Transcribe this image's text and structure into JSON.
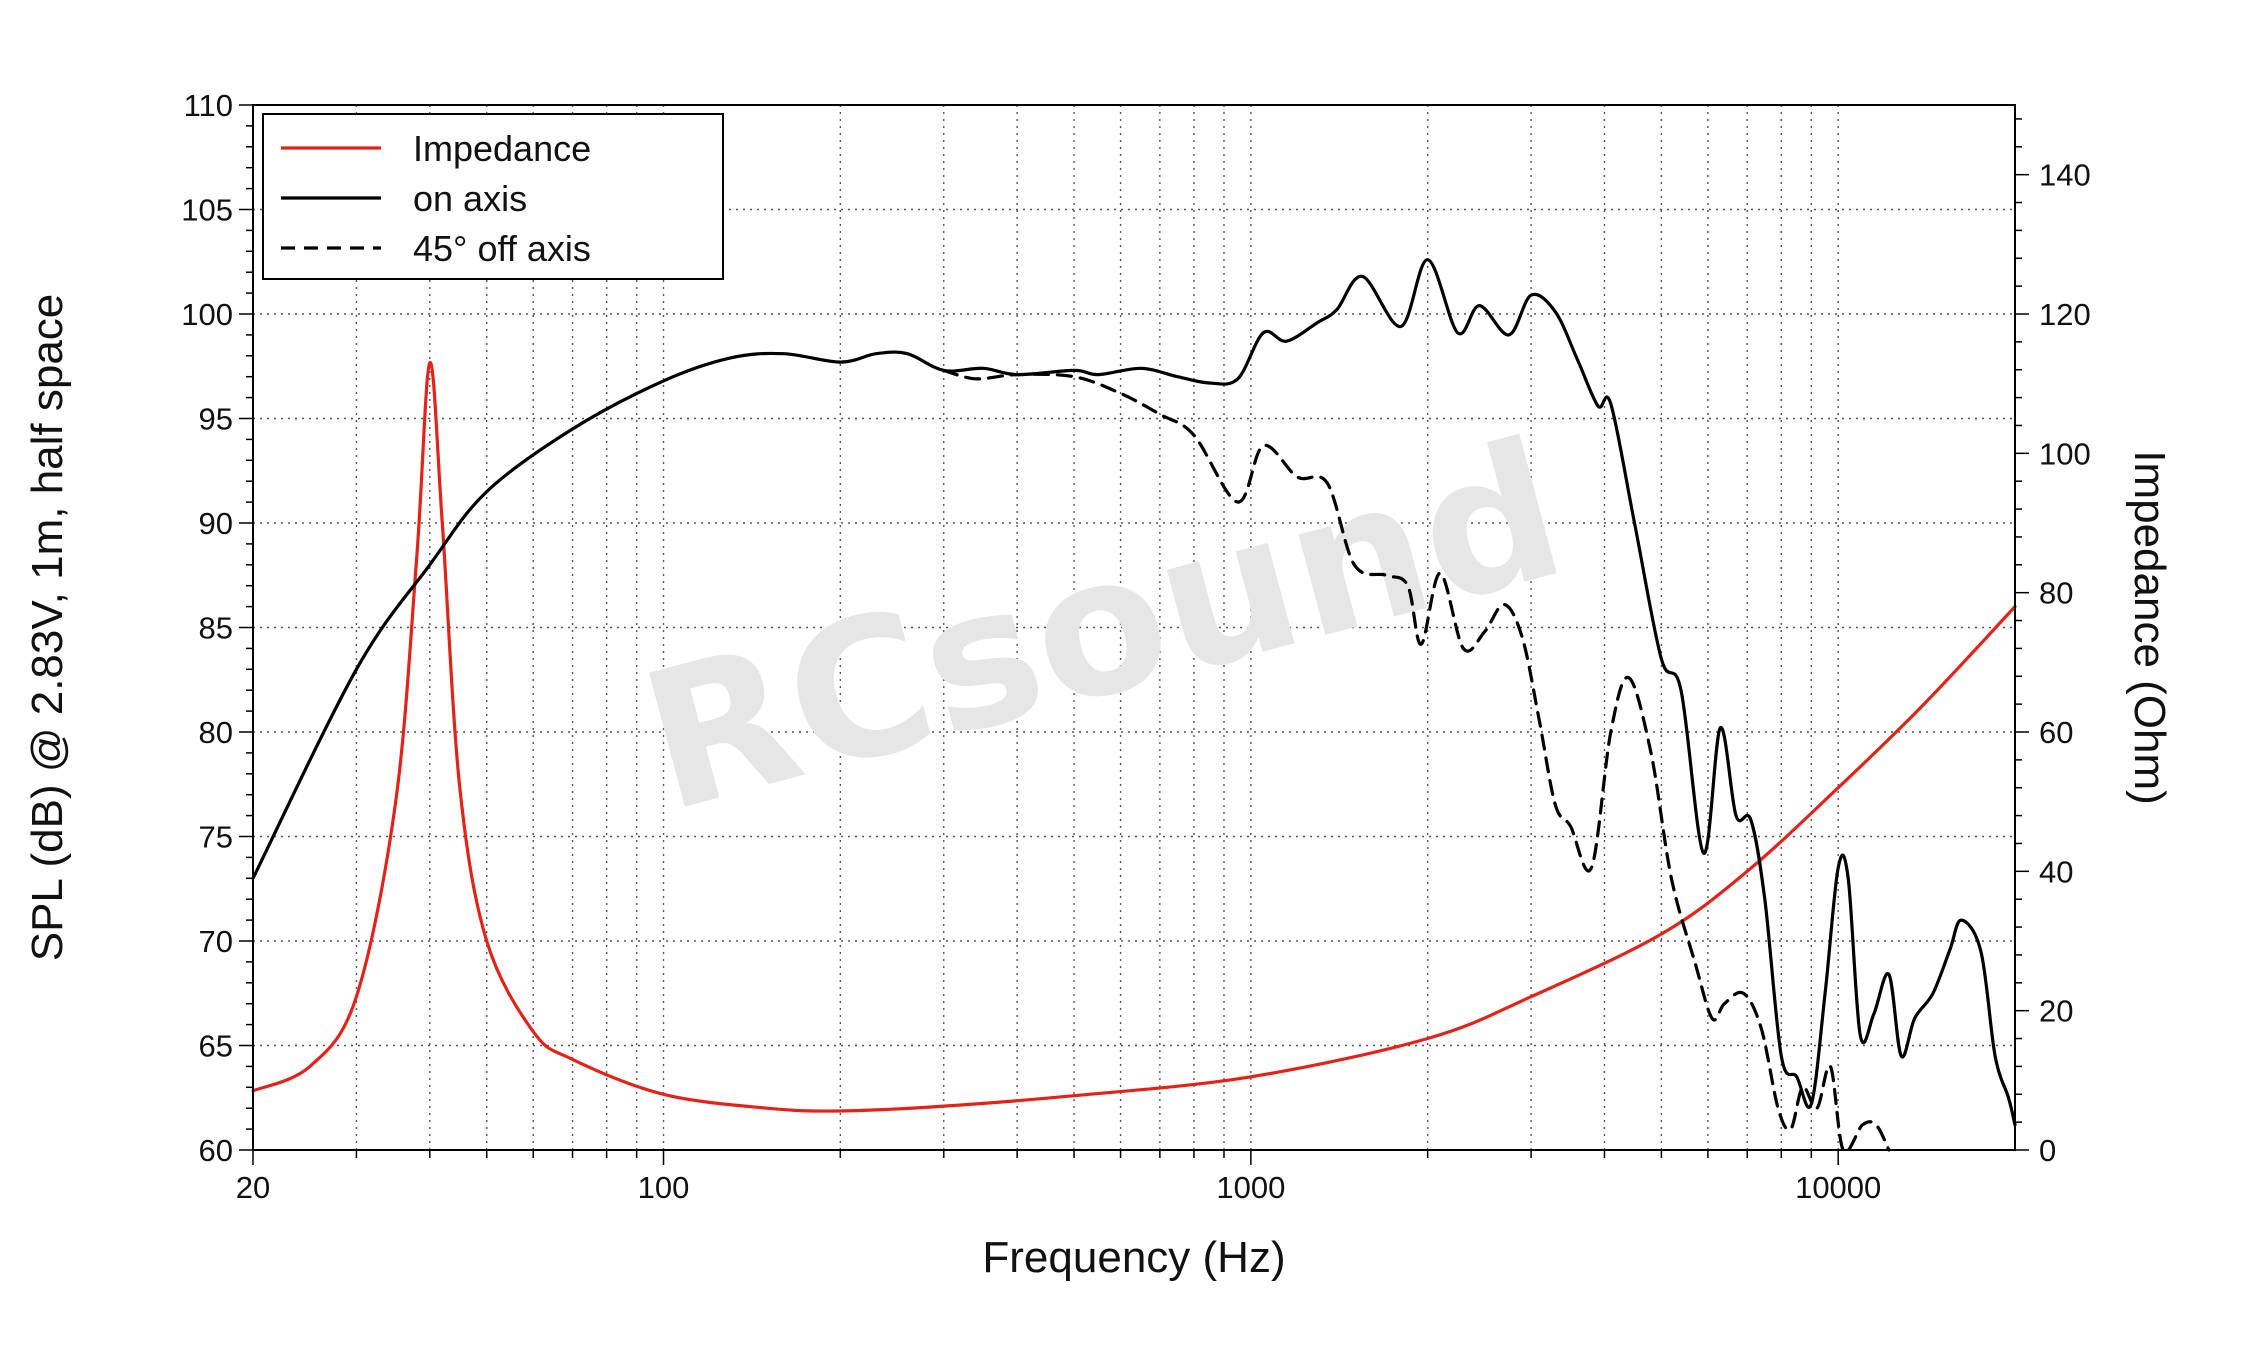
{
  "chart_data": {
    "type": "line",
    "xlabel": "Frequency (Hz)",
    "ylabel": "SPL (dB) @ 2.83V, 1m, half space",
    "y2label": "Impedance (Ohm)",
    "x_scale": "log",
    "xlim": [
      20,
      20000
    ],
    "ylim": [
      60,
      110
    ],
    "y2lim": [
      0,
      150
    ],
    "x_ticks": [
      20,
      100,
      1000,
      10000
    ],
    "x_tick_labels": [
      "20",
      "100",
      "1000",
      "10000"
    ],
    "y_ticks": [
      60,
      65,
      70,
      75,
      80,
      85,
      90,
      95,
      100,
      105,
      110
    ],
    "y_tick_labels": [
      "60",
      "65",
      "70",
      "75",
      "80",
      "85",
      "90",
      "95",
      "100",
      "105",
      "110"
    ],
    "y2_ticks": [
      0,
      20,
      40,
      60,
      80,
      100,
      120,
      140
    ],
    "y2_tick_labels": [
      "0",
      "20",
      "40",
      "60",
      "80",
      "100",
      "120",
      "140"
    ],
    "grid": true,
    "legend_position": "top-left",
    "watermark": "RCsound",
    "series": [
      {
        "name": "Impedance",
        "axis": "right",
        "color": "#e2231a",
        "dash": "solid",
        "points": [
          [
            20,
            8.5
          ],
          [
            25,
            12
          ],
          [
            30,
            22
          ],
          [
            35,
            50
          ],
          [
            38,
            85
          ],
          [
            40,
            113
          ],
          [
            42,
            90
          ],
          [
            45,
            52
          ],
          [
            50,
            30
          ],
          [
            60,
            17
          ],
          [
            70,
            13
          ],
          [
            100,
            8
          ],
          [
            150,
            6
          ],
          [
            200,
            5.6
          ],
          [
            300,
            6.3
          ],
          [
            500,
            7.8
          ],
          [
            1000,
            10.5
          ],
          [
            2000,
            16
          ],
          [
            3000,
            22
          ],
          [
            5000,
            31
          ],
          [
            7000,
            40
          ],
          [
            10000,
            52
          ],
          [
            14000,
            64
          ],
          [
            20000,
            78
          ]
        ]
      },
      {
        "name": "on axis",
        "axis": "left",
        "color": "#000000",
        "dash": "solid",
        "points": [
          [
            20,
            73
          ],
          [
            30,
            83
          ],
          [
            40,
            88
          ],
          [
            50,
            91.5
          ],
          [
            70,
            94.5
          ],
          [
            100,
            96.8
          ],
          [
            130,
            97.9
          ],
          [
            160,
            98.1
          ],
          [
            200,
            97.7
          ],
          [
            230,
            98.1
          ],
          [
            260,
            98.1
          ],
          [
            300,
            97.3
          ],
          [
            350,
            97.4
          ],
          [
            400,
            97.1
          ],
          [
            500,
            97.3
          ],
          [
            550,
            97.1
          ],
          [
            650,
            97.4
          ],
          [
            750,
            97.0
          ],
          [
            850,
            96.7
          ],
          [
            950,
            96.9
          ],
          [
            1050,
            99.1
          ],
          [
            1150,
            98.7
          ],
          [
            1300,
            99.6
          ],
          [
            1400,
            100.2
          ],
          [
            1550,
            101.8
          ],
          [
            1800,
            99.4
          ],
          [
            2000,
            102.6
          ],
          [
            2250,
            99.1
          ],
          [
            2450,
            100.4
          ],
          [
            2750,
            99.0
          ],
          [
            3000,
            100.9
          ],
          [
            3300,
            100.1
          ],
          [
            3600,
            97.8
          ],
          [
            3900,
            95.6
          ],
          [
            4100,
            95.7
          ],
          [
            4500,
            90.0
          ],
          [
            5000,
            83.5
          ],
          [
            5400,
            82.0
          ],
          [
            5900,
            74.2
          ],
          [
            6300,
            80.2
          ],
          [
            6700,
            76.0
          ],
          [
            7100,
            75.8
          ],
          [
            7500,
            72.0
          ],
          [
            8000,
            64.5
          ],
          [
            8500,
            63.5
          ],
          [
            9000,
            62.2
          ],
          [
            9500,
            67.5
          ],
          [
            10000,
            73.5
          ],
          [
            10400,
            73.0
          ],
          [
            10900,
            65.5
          ],
          [
            11500,
            66.5
          ],
          [
            12200,
            68.4
          ],
          [
            12800,
            64.5
          ],
          [
            13500,
            66.3
          ],
          [
            14500,
            67.5
          ],
          [
            15500,
            69.6
          ],
          [
            16200,
            71.0
          ],
          [
            17500,
            69.5
          ],
          [
            18500,
            64.5
          ],
          [
            19500,
            62.5
          ],
          [
            20000,
            61.2
          ]
        ]
      },
      {
        "name": "45° off axis",
        "axis": "left",
        "color": "#000000",
        "dash": "dashed",
        "points": [
          [
            300,
            97.3
          ],
          [
            340,
            96.9
          ],
          [
            400,
            97.1
          ],
          [
            500,
            97.0
          ],
          [
            600,
            96.2
          ],
          [
            700,
            95.2
          ],
          [
            800,
            94.2
          ],
          [
            950,
            91.0
          ],
          [
            1050,
            93.7
          ],
          [
            1200,
            92.2
          ],
          [
            1350,
            91.9
          ],
          [
            1500,
            88.0
          ],
          [
            1700,
            87.5
          ],
          [
            1850,
            87.0
          ],
          [
            1950,
            84.2
          ],
          [
            2100,
            87.6
          ],
          [
            2300,
            84.0
          ],
          [
            2500,
            84.8
          ],
          [
            2700,
            86.1
          ],
          [
            2900,
            84.5
          ],
          [
            3100,
            80.5
          ],
          [
            3300,
            76.5
          ],
          [
            3500,
            75.5
          ],
          [
            3800,
            73.5
          ],
          [
            4100,
            80.0
          ],
          [
            4400,
            82.6
          ],
          [
            4800,
            79.0
          ],
          [
            5200,
            73.0
          ],
          [
            5700,
            69.0
          ],
          [
            6100,
            66.3
          ],
          [
            6400,
            67.0
          ],
          [
            6900,
            67.5
          ],
          [
            7400,
            65.8
          ],
          [
            7900,
            62.0
          ],
          [
            8300,
            61.0
          ],
          [
            8700,
            63.0
          ],
          [
            9200,
            62.0
          ],
          [
            9700,
            64.0
          ],
          [
            10200,
            60.0
          ],
          [
            11000,
            61.2
          ],
          [
            11600,
            61.2
          ],
          [
            12200,
            60.0
          ]
        ]
      }
    ]
  }
}
